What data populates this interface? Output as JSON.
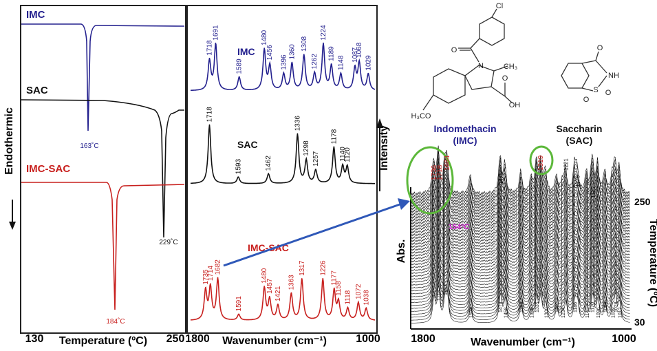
{
  "dsc": {
    "curves": [
      {
        "name": "IMC",
        "peak_label": "163˚C"
      },
      {
        "name": "SAC",
        "peak_label": "229˚C"
      },
      {
        "name": "IMC-SAC",
        "peak_label": "184˚C"
      }
    ],
    "x_start": "130",
    "x_end": "250",
    "x_label": "Temperature (ºC)",
    "y_label": "Endothermic"
  },
  "ftir": {
    "x_label": "Wavenumber (cm⁻¹)",
    "y_label": "Intensity",
    "xlim": [
      1800,
      1000
    ],
    "spectra": [
      {
        "name": "IMC",
        "color": "#23208e",
        "peaks": [
          {
            "wavenumber": 1718,
            "height": 0.55
          },
          {
            "wavenumber": 1691,
            "height": 0.85
          },
          {
            "wavenumber": 1589,
            "height": 0.25
          },
          {
            "wavenumber": 1480,
            "height": 0.75
          },
          {
            "wavenumber": 1456,
            "height": 0.45
          },
          {
            "wavenumber": 1396,
            "height": 0.3
          },
          {
            "wavenumber": 1360,
            "height": 0.5
          },
          {
            "wavenumber": 1308,
            "height": 0.65
          },
          {
            "wavenumber": 1262,
            "height": 0.3
          },
          {
            "wavenumber": 1224,
            "height": 0.85
          },
          {
            "wavenumber": 1189,
            "height": 0.45
          },
          {
            "wavenumber": 1148,
            "height": 0.3
          },
          {
            "wavenumber": 1087,
            "height": 0.4
          },
          {
            "wavenumber": 1068,
            "height": 0.5
          },
          {
            "wavenumber": 1029,
            "height": 0.3
          }
        ]
      },
      {
        "name": "SAC",
        "color": "#111111",
        "peaks": [
          {
            "wavenumber": 1718,
            "height": 0.9
          },
          {
            "wavenumber": 1593,
            "height": 0.1
          },
          {
            "wavenumber": 1462,
            "height": 0.15
          },
          {
            "wavenumber": 1336,
            "height": 0.75
          },
          {
            "wavenumber": 1298,
            "height": 0.35
          },
          {
            "wavenumber": 1257,
            "height": 0.2
          },
          {
            "wavenumber": 1178,
            "height": 0.55
          },
          {
            "wavenumber": 1140,
            "height": 0.25
          },
          {
            "wavenumber": 1120,
            "height": 0.25
          }
        ]
      },
      {
        "name": "IMC-SAC",
        "color": "#c8201e",
        "peaks": [
          {
            "wavenumber": 1735,
            "height": 0.5
          },
          {
            "wavenumber": 1714,
            "height": 0.55
          },
          {
            "wavenumber": 1682,
            "height": 0.7
          },
          {
            "wavenumber": 1591,
            "height": 0.1
          },
          {
            "wavenumber": 1480,
            "height": 0.55
          },
          {
            "wavenumber": 1457,
            "height": 0.35
          },
          {
            "wavenumber": 1421,
            "height": 0.25
          },
          {
            "wavenumber": 1363,
            "height": 0.45
          },
          {
            "wavenumber": 1317,
            "height": 0.7
          },
          {
            "wavenumber": 1226,
            "height": 0.7
          },
          {
            "wavenumber": 1177,
            "height": 0.5
          },
          {
            "wavenumber": 1158,
            "height": 0.3
          },
          {
            "wavenumber": 1118,
            "height": 0.2
          },
          {
            "wavenumber": 1072,
            "height": 0.3
          },
          {
            "wavenumber": 1038,
            "height": 0.2
          }
        ]
      }
    ]
  },
  "waterfall": {
    "x_label": "Wavenumber (cm⁻¹)",
    "y_label": "Abs.",
    "xlim": [
      1800,
      1000
    ],
    "temperature_label": "Temperature (ºC)",
    "temperature_lim": [
      30,
      250
    ],
    "transition_label": "154ºC",
    "highlight_peaks": [
      1736,
      1718,
      1684,
      1319
    ],
    "top_peaks": [
      1475,
      1221,
      1176,
      1115
    ],
    "bottom_peaks": [
      1718,
      1693,
      1593,
      1479,
      1458,
      1396,
      1356,
      1335,
      1300,
      1257,
      1234,
      1186,
      1140,
      1120,
      1096,
      1068,
      1039,
      1028,
      1012
    ]
  },
  "structures": {
    "imc": {
      "name": "Indomethacin",
      "abbr": "(IMC)",
      "atoms": [
        "Cl",
        "O",
        "N",
        "CH₃",
        "O",
        "OH",
        "H₃CO"
      ]
    },
    "sac": {
      "name": "Saccharin",
      "abbr": "(SAC)",
      "atoms": [
        "O",
        "NH",
        "S",
        "O",
        "O"
      ]
    }
  }
}
